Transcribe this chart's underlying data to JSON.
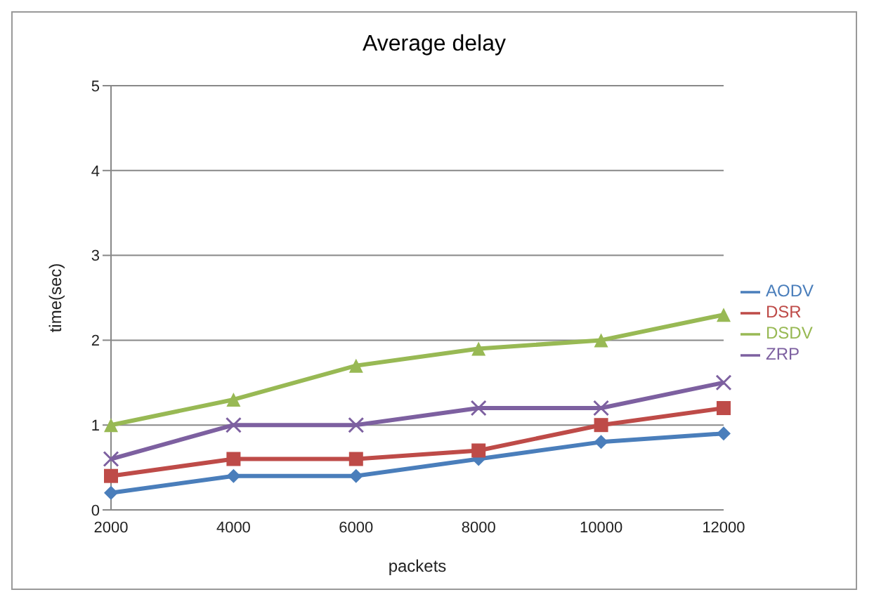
{
  "chart_data": {
    "type": "line",
    "title": "Average delay",
    "xlabel": "packets",
    "ylabel": "time(sec)",
    "categories": [
      "2000",
      "4000",
      "6000",
      "8000",
      "10000",
      "12000"
    ],
    "series": [
      {
        "name": "AODV",
        "color": "#4a7ebb",
        "marker": "diamond",
        "values": [
          0.2,
          0.4,
          0.4,
          0.6,
          0.8,
          0.9
        ]
      },
      {
        "name": "DSR",
        "color": "#be4b48",
        "marker": "square",
        "values": [
          0.4,
          0.6,
          0.6,
          0.7,
          1.0,
          1.2
        ]
      },
      {
        "name": "DSDV",
        "color": "#98b954",
        "marker": "triangle",
        "values": [
          1.0,
          1.3,
          1.7,
          1.9,
          2.0,
          2.3
        ]
      },
      {
        "name": "ZRP",
        "color": "#7d60a0",
        "marker": "cross",
        "values": [
          0.6,
          1.0,
          1.0,
          1.2,
          1.2,
          1.5
        ]
      }
    ],
    "ylim": [
      0,
      5
    ],
    "yticks": [
      0,
      1,
      2,
      3,
      4,
      5
    ],
    "grid": "y",
    "legend": "right"
  }
}
